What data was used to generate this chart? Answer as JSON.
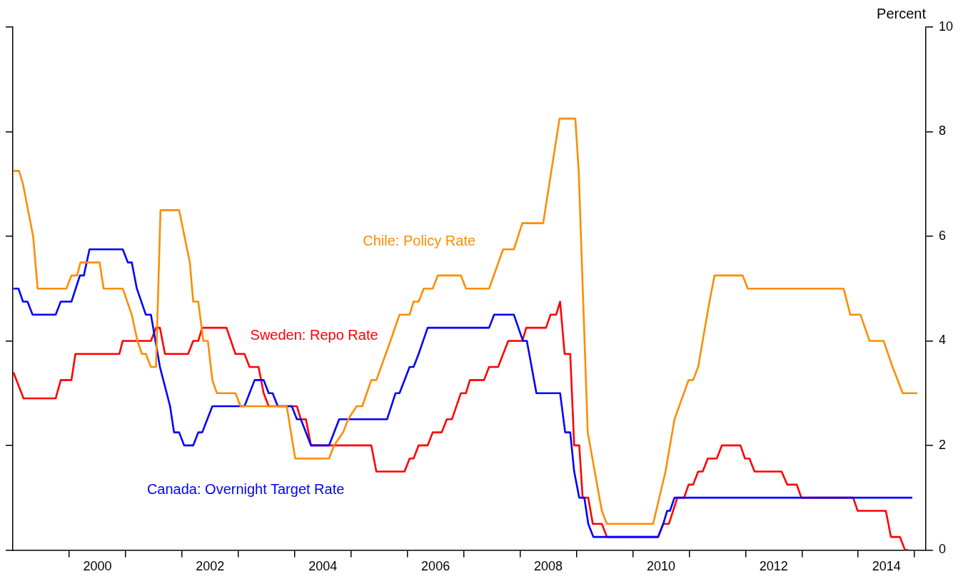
{
  "chart_data": {
    "type": "line",
    "ylabel": "Percent",
    "xlim": [
      1999,
      2015.2
    ],
    "ylim": [
      0,
      10
    ],
    "yticks": [
      0,
      2,
      4,
      6,
      8,
      10
    ],
    "xticks": [
      {
        "value": 2000,
        "label": null
      },
      {
        "value": 2000.5,
        "label": "2000"
      },
      {
        "value": 2001,
        "label": null
      },
      {
        "value": 2002,
        "label": null
      },
      {
        "value": 2002.5,
        "label": "2002"
      },
      {
        "value": 2003,
        "label": null
      },
      {
        "value": 2004,
        "label": null
      },
      {
        "value": 2004.5,
        "label": "2004"
      },
      {
        "value": 2005,
        "label": null
      },
      {
        "value": 2006,
        "label": null
      },
      {
        "value": 2006.5,
        "label": "2006"
      },
      {
        "value": 2007,
        "label": null
      },
      {
        "value": 2008,
        "label": null
      },
      {
        "value": 2008.5,
        "label": "2008"
      },
      {
        "value": 2009,
        "label": null
      },
      {
        "value": 2010,
        "label": null
      },
      {
        "value": 2010.5,
        "label": "2010"
      },
      {
        "value": 2011,
        "label": null
      },
      {
        "value": 2012,
        "label": null
      },
      {
        "value": 2012.5,
        "label": "2012"
      },
      {
        "value": 2013,
        "label": null
      },
      {
        "value": 2014,
        "label": null
      },
      {
        "value": 2014.5,
        "label": "2014"
      },
      {
        "value": 2015,
        "label": null
      }
    ],
    "grid": false,
    "legend": false,
    "marker": "none",
    "line_style": "solid",
    "series": [
      {
        "name": "Chile: Policy Rate",
        "color": "#ff8c00",
        "x": [
          1999.01,
          1999.11,
          1999.18,
          1999.36,
          1999.44,
          1999.95,
          2000.04,
          2000.14,
          2000.2,
          2000.54,
          2000.61,
          2000.95,
          2001.11,
          2001.21,
          2001.29,
          2001.36,
          2001.45,
          2001.54,
          2001.62,
          2001.95,
          2002.14,
          2002.2,
          2002.29,
          2002.38,
          2002.46,
          2002.54,
          2002.62,
          2002.95,
          2003.04,
          2003.86,
          2004.01,
          2004.61,
          2004.7,
          2004.86,
          2004.95,
          2005.1,
          2005.2,
          2005.36,
          2005.45,
          2005.7,
          2005.86,
          2006.04,
          2006.11,
          2006.2,
          2006.29,
          2006.45,
          2006.54,
          2006.95,
          2007.04,
          2007.45,
          2007.7,
          2007.89,
          2008.04,
          2008.41,
          2008.7,
          2008.98,
          2009.04,
          2009.2,
          2009.45,
          2009.54,
          2010.36,
          2010.58,
          2010.74,
          2010.99,
          2011.07,
          2011.16,
          2011.36,
          2011.45,
          2011.95,
          2012.04,
          2013.74,
          2013.86,
          2014.04,
          2014.2,
          2014.45,
          2014.61,
          2014.79,
          2015.05
        ],
        "values": [
          7.25,
          7.25,
          7,
          6,
          5,
          5,
          5.25,
          5.25,
          5.5,
          5.5,
          5,
          5,
          4.5,
          4,
          3.75,
          3.75,
          3.5,
          3.5,
          6.5,
          6.5,
          5.5,
          4.75,
          4.75,
          4,
          4,
          3.25,
          3,
          3,
          2.75,
          2.75,
          1.75,
          1.75,
          2,
          2.25,
          2.5,
          2.75,
          2.75,
          3.25,
          3.25,
          4,
          4.5,
          4.5,
          4.75,
          4.75,
          5,
          5,
          5.25,
          5.25,
          5,
          5,
          5.75,
          5.75,
          6.25,
          6.25,
          8.25,
          8.25,
          7.25,
          2.25,
          0.75,
          0.5,
          0.5,
          1.5,
          2.5,
          3.25,
          3.25,
          3.5,
          4.75,
          5.25,
          5.25,
          5,
          5,
          4.5,
          4.5,
          4,
          4,
          3.5,
          3,
          3
        ]
      },
      {
        "name": "Canada: Overnight Target Rate",
        "color": "#0000ff",
        "x": [
          1999.01,
          1999.1,
          1999.18,
          1999.26,
          1999.35,
          1999.76,
          1999.85,
          2000.04,
          2000.19,
          2000.26,
          2000.36,
          2000.95,
          2001.04,
          2001.11,
          2001.2,
          2001.36,
          2001.45,
          2001.61,
          2001.79,
          2001.86,
          2001.95,
          2002.04,
          2002.2,
          2002.29,
          2002.36,
          2002.54,
          2003.11,
          2003.29,
          2003.45,
          2003.54,
          2003.61,
          2003.7,
          2003.95,
          2004.04,
          2004.11,
          2004.29,
          2004.61,
          2004.79,
          2005.64,
          2005.79,
          2005.86,
          2006.04,
          2006.11,
          2006.2,
          2006.36,
          2007.45,
          2007.54,
          2007.89,
          2008.05,
          2008.12,
          2008.29,
          2008.71,
          2008.8,
          2008.89,
          2008.96,
          2009.05,
          2009.14,
          2009.21,
          2009.3,
          2010.45,
          2010.54,
          2010.61,
          2010.66,
          2010.74,
          2014.96
        ],
        "values": [
          5,
          5,
          4.75,
          4.75,
          4.5,
          4.5,
          4.75,
          4.75,
          5.25,
          5.25,
          5.75,
          5.75,
          5.5,
          5.5,
          5,
          4.5,
          4.5,
          3.5,
          2.75,
          2.25,
          2.25,
          2,
          2,
          2.25,
          2.25,
          2.75,
          2.75,
          3.25,
          3.25,
          3,
          3,
          2.75,
          2.75,
          2.5,
          2.5,
          2,
          2,
          2.5,
          2.5,
          3,
          3,
          3.5,
          3.5,
          3.75,
          4.25,
          4.25,
          4.5,
          4.5,
          4,
          4,
          3,
          3,
          2.25,
          2.25,
          1.5,
          1,
          1,
          0.5,
          0.25,
          0.25,
          0.5,
          0.75,
          0.75,
          1,
          1
        ]
      },
      {
        "name": "Sweden: Repo Rate",
        "color": "#ff0000",
        "x": [
          1999.01,
          1999.19,
          1999.76,
          1999.85,
          2000.04,
          2000.11,
          2000.89,
          2000.95,
          2001.45,
          2001.54,
          2001.61,
          2001.7,
          2002.11,
          2002.2,
          2002.29,
          2002.36,
          2002.79,
          2002.95,
          2003.11,
          2003.2,
          2003.36,
          2003.45,
          2003.54,
          2004.04,
          2004.11,
          2004.2,
          2004.29,
          2005.36,
          2005.45,
          2005.95,
          2006.04,
          2006.11,
          2006.2,
          2006.36,
          2006.45,
          2006.61,
          2006.7,
          2006.79,
          2006.95,
          2007.04,
          2007.11,
          2007.36,
          2007.45,
          2007.61,
          2007.79,
          2008.04,
          2008.11,
          2008.46,
          2008.54,
          2008.64,
          2008.71,
          2008.79,
          2008.89,
          2008.96,
          2009.05,
          2009.11,
          2009.21,
          2009.29,
          2009.45,
          2009.54,
          2010.45,
          2010.54,
          2010.64,
          2010.79,
          2010.91,
          2010.99,
          2011.07,
          2011.16,
          2011.24,
          2011.33,
          2011.49,
          2011.58,
          2011.91,
          2011.99,
          2012.07,
          2012.16,
          2012.64,
          2012.74,
          2012.91,
          2012.99,
          2013.91,
          2013.99,
          2014.49,
          2014.58,
          2014.74,
          2014.83,
          2014.89
        ],
        "values": [
          3.4,
          2.9,
          2.9,
          3.25,
          3.25,
          3.75,
          3.75,
          4,
          4,
          4.25,
          4.25,
          3.75,
          3.75,
          4,
          4,
          4.25,
          4.25,
          3.75,
          3.75,
          3.5,
          3.5,
          3,
          2.75,
          2.75,
          2.5,
          2.5,
          2,
          2,
          1.5,
          1.5,
          1.75,
          1.75,
          2,
          2,
          2.25,
          2.25,
          2.5,
          2.5,
          3,
          3,
          3.25,
          3.25,
          3.5,
          3.5,
          4,
          4,
          4.25,
          4.25,
          4.5,
          4.5,
          4.75,
          3.75,
          3.75,
          2,
          2,
          1,
          1,
          0.5,
          0.5,
          0.25,
          0.25,
          0.5,
          0.5,
          1,
          1,
          1.25,
          1.25,
          1.5,
          1.5,
          1.75,
          1.75,
          2,
          2,
          1.75,
          1.75,
          1.5,
          1.5,
          1.25,
          1.25,
          1,
          1,
          0.75,
          0.75,
          0.25,
          0.25,
          0,
          0
        ]
      }
    ]
  }
}
